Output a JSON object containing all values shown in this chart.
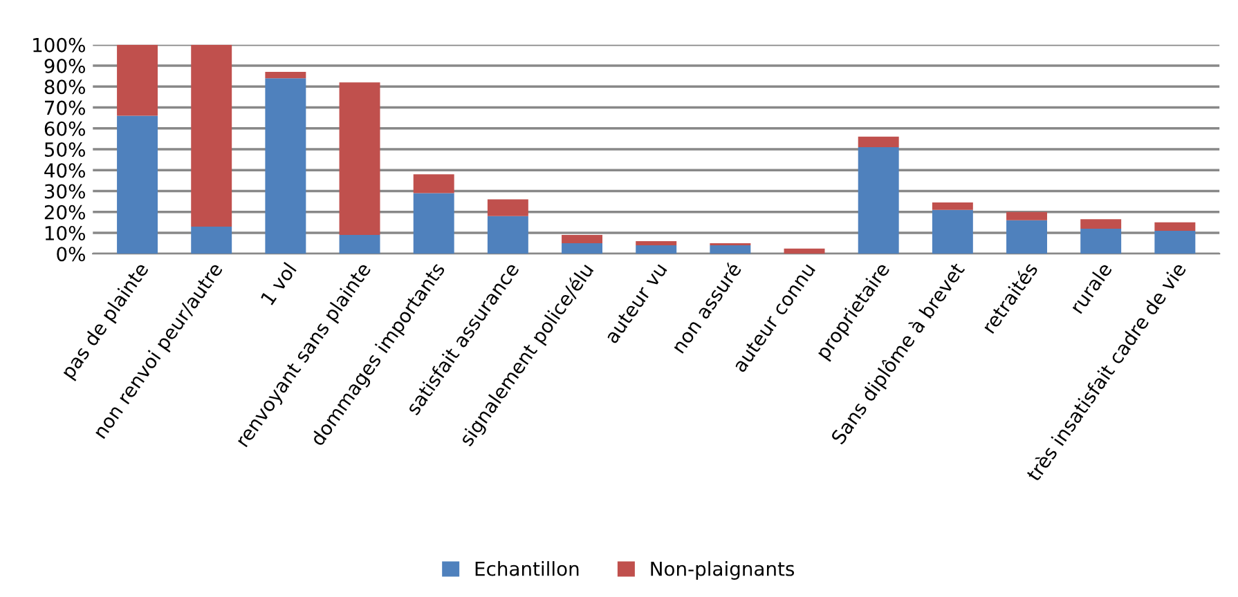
{
  "chart_data": {
    "type": "bar",
    "stacked": true,
    "categories": [
      "pas de plainte",
      "non renvoi peur/autre",
      "1 vol",
      "renvoyant sans plainte",
      "dommages importants",
      "satisfait assurance",
      "signalement police/élu",
      "auteur vu",
      "non assuré",
      "auteur connu",
      "proprietaire",
      "Sans diplôme à brevet",
      "retraités",
      "rurale",
      "très insatisfait cadre de vie"
    ],
    "series": [
      {
        "name": "Echantillon",
        "color": "#4f81bd",
        "values": [
          66,
          13,
          84,
          9,
          29,
          18,
          5,
          4,
          4,
          null,
          51,
          21,
          16,
          12,
          11
        ]
      },
      {
        "name": "Non-plaignants",
        "color": "#c0504d",
        "values": [
          34,
          87,
          3,
          73,
          9,
          8,
          4,
          2,
          1,
          2.5,
          5,
          3.5,
          4,
          4.5,
          4
        ]
      }
    ],
    "ylim": [
      0,
      100
    ],
    "yticks": [
      {
        "value": 0,
        "label": "0%"
      },
      {
        "value": 10,
        "label": "10%"
      },
      {
        "value": 20,
        "label": "20%"
      },
      {
        "value": 30,
        "label": "30%"
      },
      {
        "value": 40,
        "label": "40%"
      },
      {
        "value": 50,
        "label": "50%"
      },
      {
        "value": 60,
        "label": "60%"
      },
      {
        "value": 70,
        "label": "70%"
      },
      {
        "value": 80,
        "label": "80%"
      },
      {
        "value": 90,
        "label": "90%"
      },
      {
        "value": 100,
        "label": "100%"
      }
    ],
    "grid": "y",
    "legend": "bottom"
  }
}
